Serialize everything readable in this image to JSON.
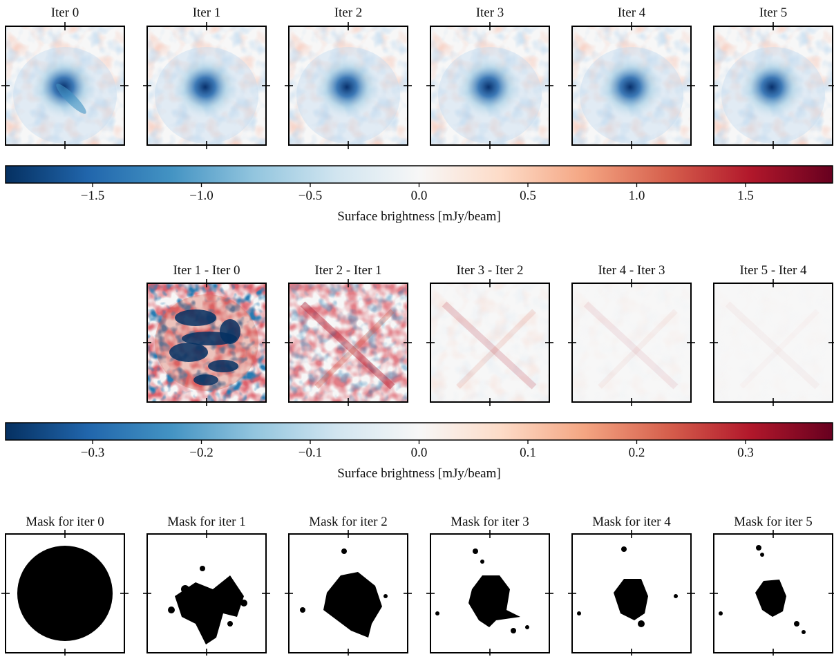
{
  "row1": {
    "titles": [
      "Iter 0",
      "Iter 1",
      "Iter 2",
      "Iter 3",
      "Iter 4",
      "Iter 5"
    ]
  },
  "colorbar1": {
    "label": "Surface brightness [mJy/beam]",
    "lim": [
      -1.9,
      1.9
    ],
    "ticks": [
      {
        "value": -1.5,
        "label": "−1.5"
      },
      {
        "value": -1.0,
        "label": "−1.0"
      },
      {
        "value": -0.5,
        "label": "−0.5"
      },
      {
        "value": 0,
        "label": "0.0"
      },
      0.5,
      {
        "value": 1.0,
        "label": "1.0"
      },
      1.5
    ]
  },
  "row2": {
    "titles": [
      "Iter 1 - Iter 0",
      "Iter 2 - Iter 1",
      "Iter 3 - Iter 2",
      "Iter 4 - Iter 3",
      "Iter 5 - Iter 4"
    ]
  },
  "colorbar2": {
    "label": "Surface brightness [mJy/beam]",
    "lim": [
      -0.38,
      0.38
    ],
    "ticks": [
      {
        "value": -0.3,
        "label": "−0.3"
      },
      {
        "value": -0.2,
        "label": "−0.2"
      },
      {
        "value": -0.1,
        "label": "−0.1"
      },
      {
        "value": 0,
        "label": "0.0"
      },
      0.1,
      0.2,
      0.3
    ]
  },
  "row3": {
    "titles": [
      "Mask for iter 0",
      "Mask for iter 1",
      "Mask for iter 2",
      "Mask for iter 3",
      "Mask for iter 4",
      "Mask for iter 5"
    ]
  }
}
